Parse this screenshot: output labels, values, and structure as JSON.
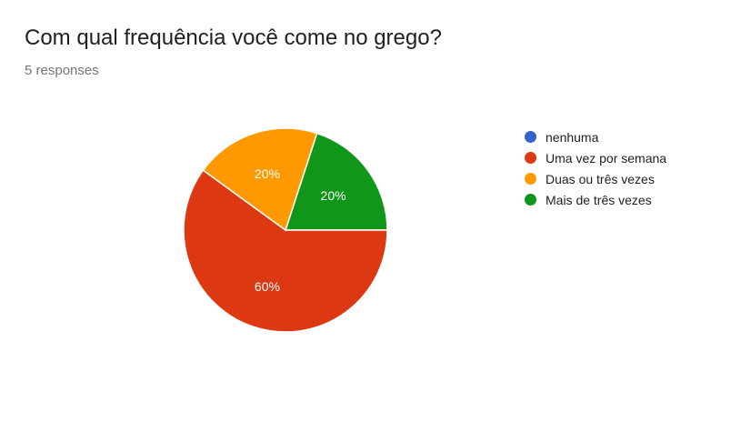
{
  "question": {
    "title": "Com qual frequência você come no grego?",
    "responses": "5 responses"
  },
  "chart_data": {
    "type": "pie",
    "title": "Com qual frequência você come no grego?",
    "slices": [
      {
        "label": "nenhuma",
        "value": 0,
        "percent_label": "",
        "color": "#3366cc"
      },
      {
        "label": "Uma vez por semana",
        "value": 60,
        "percent_label": "60%",
        "color": "#dc3912"
      },
      {
        "label": "Duas ou três vezes",
        "value": 20,
        "percent_label": "20%",
        "color": "#ff9900"
      },
      {
        "label": "Mais de três vezes",
        "value": 20,
        "percent_label": "20%",
        "color": "#109618"
      }
    ],
    "legend_position": "right"
  }
}
